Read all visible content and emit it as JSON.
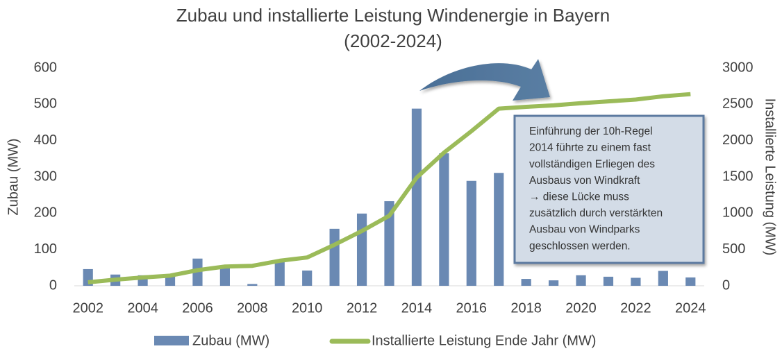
{
  "chart_data": {
    "type": "bar_line",
    "title": [
      "Zubau und installierte Leistung Windenergie in Bayern",
      "(2002-2024)"
    ],
    "x": [
      2002,
      2003,
      2004,
      2005,
      2006,
      2007,
      2008,
      2009,
      2010,
      2011,
      2012,
      2013,
      2014,
      2015,
      2016,
      2017,
      2018,
      2019,
      2020,
      2021,
      2022,
      2023,
      2024
    ],
    "xlim": [
      2001.5,
      2024.5
    ],
    "xticks": [
      2002,
      2004,
      2006,
      2008,
      2010,
      2012,
      2014,
      2016,
      2018,
      2020,
      2022,
      2024
    ],
    "ylim": [
      0,
      600
    ],
    "yticks": [
      0,
      100,
      200,
      300,
      400,
      500,
      600
    ],
    "y2lim": [
      0,
      3000
    ],
    "y2ticks": [
      0,
      500,
      1000,
      1500,
      2000,
      2500,
      3000
    ],
    "ylabel": "Zubau (MW)",
    "y2label": "Installierte Leistung (MW)",
    "series": [
      {
        "name": "Zubau (MW)",
        "kind": "bar",
        "color": "#6a89b3",
        "values": [
          46,
          31,
          29,
          27,
          75,
          52,
          5,
          65,
          42,
          157,
          199,
          233,
          488,
          365,
          289,
          311,
          19,
          15,
          29,
          25,
          22,
          41,
          23
        ]
      },
      {
        "name": "Installierte Leistung Ende Jahr (MW)",
        "kind": "line",
        "axis": "y2",
        "color": "#9bbb59",
        "values": [
          48,
          85,
          115,
          140,
          215,
          265,
          275,
          345,
          390,
          565,
          755,
          965,
          1490,
          1835,
          2130,
          2440,
          2465,
          2485,
          2515,
          2540,
          2565,
          2610,
          2640
        ]
      }
    ],
    "annotation": [
      "Einführung der 10h-Regel",
      "2014 führte zu einem fast",
      "vollständigen Erliegen des",
      "Ausbaus von Windkraft",
      "→ diese Lücke muss",
      "zusätzlich durch verstärkten",
      "Ausbau von Windparks",
      "geschlossen werden."
    ]
  }
}
